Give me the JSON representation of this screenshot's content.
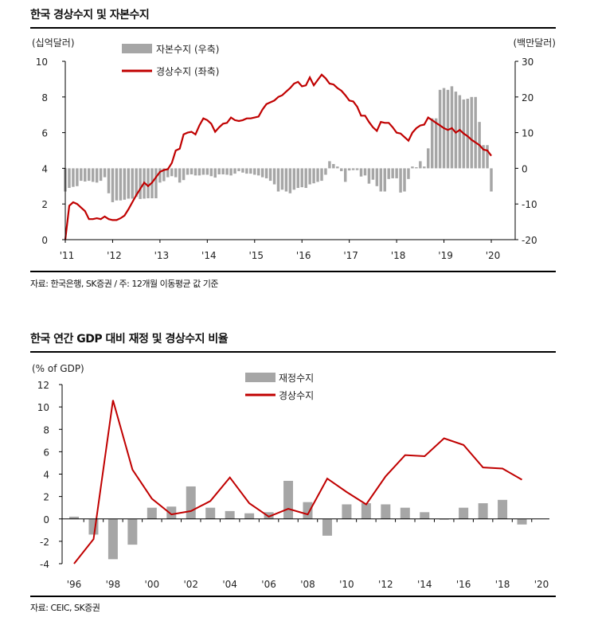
{
  "colors": {
    "bar": "#a6a6a6",
    "line": "#c00000",
    "axis": "#000000"
  },
  "chart_data": [
    {
      "type": "bar+line",
      "title": "한국 경상수지 및 자본수지",
      "source": "자료: 한국은행, SK증권 / 주: 12개월 이동평균 값 기준",
      "ylabel_left": "(십억달러)",
      "ylabel_right": "(백만달러)",
      "ylim_left": [
        0,
        10
      ],
      "yticks_left": [
        "0",
        "2",
        "4",
        "6",
        "8",
        "10"
      ],
      "ylim_right": [
        -20,
        30
      ],
      "yticks_right": [
        "-20",
        "-10",
        "0",
        "10",
        "20",
        "30"
      ],
      "xticks": [
        "'11",
        "'12",
        "'13",
        "'14",
        "'15",
        "'16",
        "'17",
        "'18",
        "'19",
        "'20"
      ],
      "x_start": "2011-01",
      "x_end": "2020-01",
      "frequency": "monthly",
      "legend_placement": "top-left",
      "series": [
        {
          "name": "자본수지 (우축)",
          "type": "bar",
          "axis": "right",
          "values": [
            -6.5,
            -5.5,
            -5.2,
            -5.0,
            -3.5,
            -3.7,
            -3.5,
            -3.8,
            -4.0,
            -3.5,
            -2.5,
            -7.0,
            -9.5,
            -9.0,
            -9.0,
            -8.8,
            -8.5,
            -8.5,
            -8.0,
            -8.6,
            -8.5,
            -8.4,
            -8.4,
            -8.4,
            -4.0,
            -3.6,
            -2.5,
            -2.2,
            -2.5,
            -4.0,
            -3.3,
            -1.8,
            -1.7,
            -2.0,
            -2.0,
            -1.8,
            -1.8,
            -2.2,
            -2.6,
            -1.7,
            -1.7,
            -1.8,
            -2.0,
            -1.5,
            -0.8,
            -1.2,
            -1.5,
            -1.5,
            -1.8,
            -2.0,
            -2.5,
            -2.8,
            -3.5,
            -4.5,
            -6.5,
            -6.0,
            -6.5,
            -7.0,
            -6.0,
            -5.5,
            -5.3,
            -5.5,
            -4.5,
            -4.2,
            -3.8,
            -3.5,
            -1.8,
            2.0,
            1.2,
            0.5,
            -0.8,
            -3.8,
            -0.6,
            -0.5,
            -0.5,
            -2.3,
            -2.0,
            -4.3,
            -3.2,
            -5.0,
            -6.5,
            -6.5,
            -3.0,
            -2.8,
            -2.8,
            -6.8,
            -6.5,
            -3.0,
            0.5,
            0.3,
            2.0,
            0.5,
            5.6,
            14.0,
            14.0,
            22.0,
            22.5,
            22.0,
            23.0,
            21.5,
            20.5,
            19.3,
            19.5,
            20.0,
            20.0,
            13.0,
            6.5,
            6.5,
            -6.5
          ]
        },
        {
          "name": "경상수지 (좌축)",
          "type": "line",
          "axis": "left",
          "values": [
            0,
            1.9,
            2.1,
            2.0,
            1.8,
            1.6,
            1.15,
            1.15,
            1.2,
            1.15,
            1.3,
            1.15,
            1.1,
            1.1,
            1.2,
            1.35,
            1.7,
            2.1,
            2.5,
            2.85,
            3.2,
            3.0,
            3.2,
            3.5,
            3.8,
            3.9,
            3.95,
            4.3,
            5.0,
            5.1,
            5.9,
            6.0,
            6.05,
            5.9,
            6.4,
            6.8,
            6.7,
            6.5,
            6.05,
            6.3,
            6.5,
            6.55,
            6.85,
            6.7,
            6.65,
            6.7,
            6.8,
            6.8,
            6.85,
            6.9,
            7.3,
            7.6,
            7.7,
            7.8,
            8.0,
            8.1,
            8.3,
            8.5,
            8.75,
            8.85,
            8.6,
            8.65,
            9.1,
            8.65,
            8.95,
            9.25,
            9.05,
            8.75,
            8.7,
            8.5,
            8.35,
            8.1,
            7.8,
            7.75,
            7.45,
            6.95,
            6.95,
            6.6,
            6.3,
            6.1,
            6.6,
            6.55,
            6.55,
            6.3,
            6.0,
            5.95,
            5.75,
            5.55,
            6.0,
            6.25,
            6.4,
            6.45,
            6.85,
            6.7,
            6.55,
            6.4,
            6.25,
            6.15,
            6.25,
            6.0,
            6.15,
            5.95,
            5.8,
            5.6,
            5.45,
            5.3,
            5.05,
            5.0,
            4.7
          ]
        }
      ]
    },
    {
      "type": "bar+line",
      "title": "한국 연간 GDP 대비 재정 및 경상수지 비율",
      "source": "자료: CEIC, SK증권",
      "ylabel": "(% of GDP)",
      "ylim": [
        -4,
        12
      ],
      "yticks": [
        "-4",
        "-2",
        "0",
        "2",
        "4",
        "6",
        "8",
        "10",
        "12"
      ],
      "xticks": [
        "'96",
        "'98",
        "'00",
        "'02",
        "'04",
        "'06",
        "'08",
        "'10",
        "'12",
        "'14",
        "'16",
        "'18",
        "'20"
      ],
      "x": [
        1996,
        1997,
        1998,
        1999,
        2000,
        2001,
        2002,
        2003,
        2004,
        2005,
        2006,
        2007,
        2008,
        2009,
        2010,
        2011,
        2012,
        2013,
        2014,
        2015,
        2016,
        2017,
        2018,
        2019
      ],
      "legend_placement": "top-center",
      "series": [
        {
          "name": "재정수지",
          "type": "bar",
          "values": [
            0.2,
            -1.4,
            -3.6,
            -2.3,
            1.0,
            1.1,
            2.9,
            1.0,
            0.7,
            0.5,
            0.6,
            3.4,
            1.5,
            -1.5,
            1.3,
            1.4,
            1.3,
            1.0,
            0.6,
            0.0,
            1.0,
            1.4,
            1.7,
            -0.5
          ]
        },
        {
          "name": "경상수지",
          "type": "line",
          "values": [
            -4.0,
            -1.8,
            10.6,
            4.4,
            1.8,
            0.4,
            0.7,
            1.6,
            3.7,
            1.4,
            0.2,
            0.9,
            0.4,
            3.6,
            2.4,
            1.3,
            3.8,
            5.7,
            5.6,
            7.2,
            6.6,
            4.6,
            4.5,
            3.5
          ]
        }
      ]
    }
  ]
}
